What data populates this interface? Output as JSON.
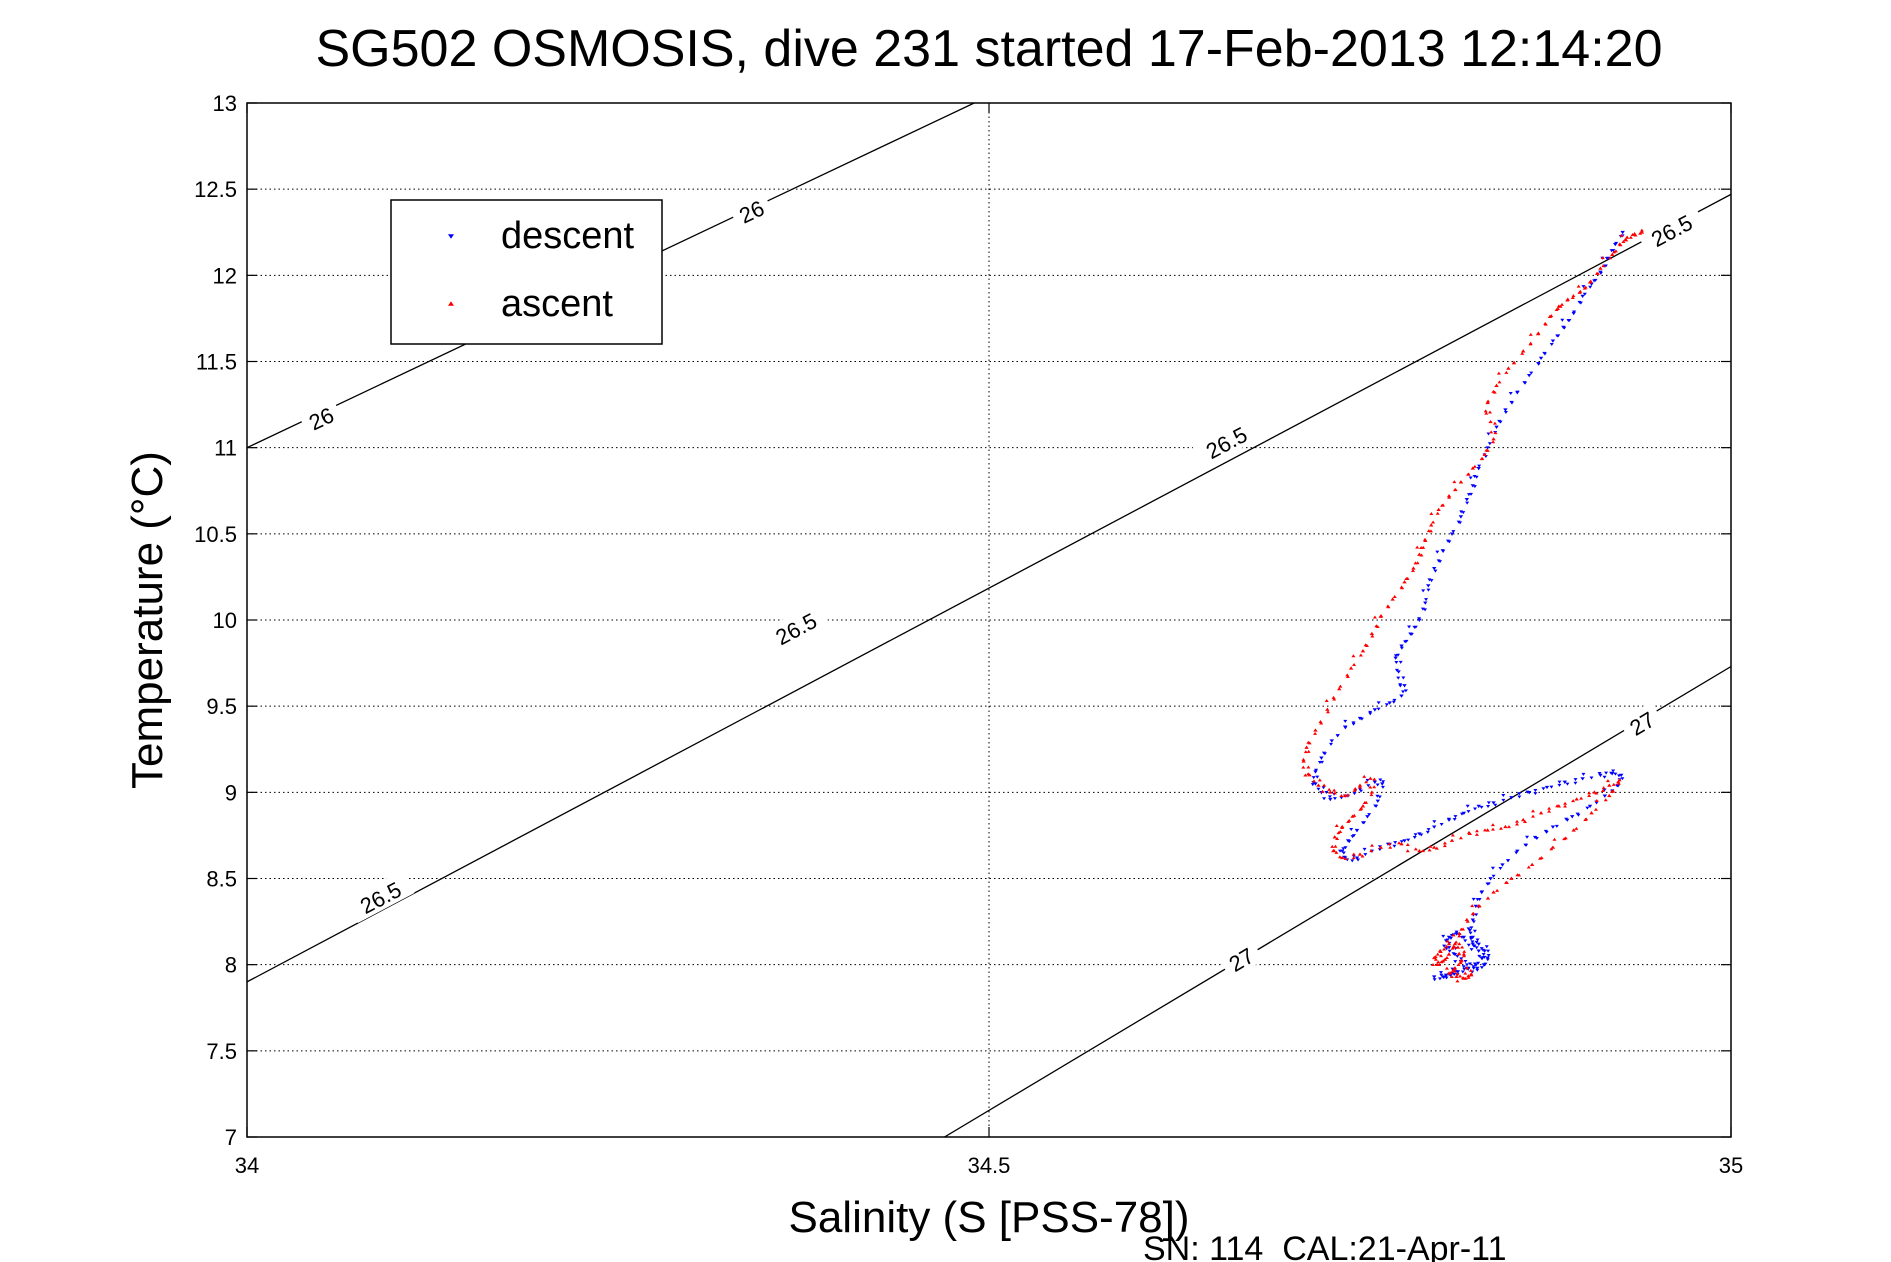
{
  "chart_data": {
    "type": "scatter",
    "title": "SG502 OSMOSIS, dive 231 started 17-Feb-2013 12:14:20",
    "xlabel": "Salinity (S [PSS-78])",
    "ylabel": "Temperature (°C)",
    "xlim": [
      34,
      35
    ],
    "ylim": [
      7,
      13
    ],
    "x_ticks": [
      "34",
      "34.5",
      "35"
    ],
    "y_ticks": [
      "7",
      "7.5",
      "8",
      "8.5",
      "9",
      "9.5",
      "10",
      "10.5",
      "11",
      "11.5",
      "12",
      "12.5",
      "13"
    ],
    "grid": true,
    "legend_position": "top-left",
    "footer": "SN: 114  CAL:21-Apr-11",
    "colors": {
      "descent": "#0000ff",
      "ascent": "#ff0000",
      "contour": "#000000"
    },
    "contours": [
      {
        "label": "26",
        "points": [
          [
            34.0,
            11.0
          ],
          [
            34.49,
            13.0
          ]
        ],
        "label_positions": [
          [
            34.05,
            11.17
          ],
          [
            34.34,
            12.37
          ]
        ]
      },
      {
        "label": "26.5",
        "points": [
          [
            34.0,
            7.9
          ],
          [
            35.0,
            12.47
          ]
        ],
        "label_positions": [
          [
            34.09,
            8.39
          ],
          [
            34.37,
            9.95
          ],
          [
            34.66,
            11.03
          ],
          [
            34.96,
            12.26
          ]
        ]
      },
      {
        "label": "27",
        "points": [
          [
            34.47,
            7.0
          ],
          [
            35.0,
            9.73
          ]
        ],
        "label_positions": [
          [
            34.67,
            8.03
          ],
          [
            34.94,
            9.4
          ]
        ]
      }
    ],
    "series": [
      {
        "name": "descent",
        "marker": "triangle-down",
        "x": [
          34.927,
          34.922,
          34.917,
          34.912,
          34.906,
          34.9,
          34.894,
          34.887,
          34.88,
          34.872,
          34.864,
          34.856,
          34.848,
          34.842,
          34.836,
          34.83,
          34.826,
          34.822,
          34.818,
          34.812,
          34.806,
          34.8,
          34.796,
          34.794,
          34.79,
          34.784,
          34.778,
          34.774,
          34.776,
          34.78,
          34.778,
          34.77,
          34.76,
          34.75,
          34.74,
          34.731,
          34.724,
          34.72,
          34.72,
          34.724,
          34.73,
          34.74,
          34.75,
          34.76,
          34.765,
          34.762,
          34.755,
          34.748,
          34.742,
          34.738,
          34.74,
          34.748,
          34.758,
          34.77,
          34.78,
          34.79,
          34.8,
          34.81,
          34.82,
          34.83,
          34.84,
          34.852,
          34.864,
          34.876,
          34.888,
          34.9,
          34.912,
          34.92,
          34.926,
          34.924,
          34.915,
          34.905,
          34.893,
          34.88,
          34.868,
          34.856,
          34.846,
          34.838,
          34.832,
          34.828,
          34.826,
          34.824,
          34.826,
          34.83,
          34.834,
          34.836,
          34.834,
          34.829,
          34.823,
          34.818,
          34.814,
          34.81,
          34.808,
          34.81,
          34.815,
          34.82,
          34.826,
          34.83,
          34.832,
          34.828,
          34.822,
          34.816,
          34.811,
          34.808,
          34.806,
          34.8
        ],
        "y": [
          12.25,
          12.18,
          12.1,
          12.02,
          11.95,
          11.88,
          11.78,
          11.7,
          11.62,
          11.52,
          11.42,
          11.32,
          11.22,
          11.12,
          11.0,
          10.88,
          10.78,
          10.7,
          10.6,
          10.5,
          10.4,
          10.3,
          10.2,
          10.1,
          10.0,
          9.92,
          9.85,
          9.78,
          9.7,
          9.62,
          9.56,
          9.52,
          9.48,
          9.43,
          9.38,
          9.3,
          9.2,
          9.12,
          9.05,
          9.0,
          8.96,
          8.98,
          9.02,
          9.06,
          9.05,
          8.95,
          8.86,
          8.78,
          8.72,
          8.66,
          8.62,
          8.62,
          8.66,
          8.7,
          8.72,
          8.76,
          8.8,
          8.84,
          8.88,
          8.92,
          8.94,
          8.97,
          9.0,
          9.03,
          9.06,
          9.08,
          9.1,
          9.11,
          9.1,
          9.04,
          8.98,
          8.92,
          8.86,
          8.8,
          8.74,
          8.66,
          8.58,
          8.5,
          8.42,
          8.34,
          8.26,
          8.2,
          8.16,
          8.12,
          8.08,
          8.04,
          8.0,
          7.98,
          7.98,
          8.02,
          8.06,
          8.1,
          8.14,
          8.16,
          8.18,
          8.16,
          8.12,
          8.08,
          8.04,
          8.0,
          7.98,
          7.96,
          7.94,
          7.94,
          7.93,
          7.93
        ]
      },
      {
        "name": "ascent",
        "marker": "triangle-up",
        "x": [
          34.94,
          34.935,
          34.93,
          34.925,
          34.92,
          34.912,
          34.905,
          34.898,
          34.89,
          34.884,
          34.878,
          34.87,
          34.86,
          34.85,
          34.842,
          34.836,
          34.838,
          34.84,
          34.834,
          34.826,
          34.818,
          34.81,
          34.803,
          34.798,
          34.794,
          34.79,
          34.786,
          34.78,
          34.772,
          34.764,
          34.758,
          34.752,
          34.744,
          34.736,
          34.728,
          34.72,
          34.714,
          34.712,
          34.716,
          34.722,
          34.73,
          34.74,
          34.75,
          34.757,
          34.758,
          34.752,
          34.745,
          34.738,
          34.733,
          34.732,
          34.738,
          34.75,
          34.764,
          34.778,
          34.79,
          34.8,
          34.812,
          34.824,
          34.836,
          34.848,
          34.86,
          34.872,
          34.884,
          34.896,
          34.908,
          34.918,
          34.924,
          34.918,
          34.906,
          34.894,
          34.88,
          34.866,
          34.852,
          34.84,
          34.83,
          34.822,
          34.817,
          34.814,
          34.81,
          34.806,
          34.802,
          34.8,
          34.804,
          34.81,
          34.816,
          34.82,
          34.818,
          34.814,
          34.81,
          34.815,
          34.82,
          34.825,
          34.822
        ],
        "y": [
          12.25,
          12.24,
          12.22,
          12.18,
          12.12,
          12.04,
          11.96,
          11.9,
          11.86,
          11.82,
          11.76,
          11.66,
          11.56,
          11.46,
          11.36,
          11.26,
          11.15,
          11.05,
          10.96,
          10.88,
          10.8,
          10.72,
          10.64,
          10.55,
          10.46,
          10.38,
          10.3,
          10.22,
          10.12,
          10.02,
          9.92,
          9.82,
          9.72,
          9.6,
          9.48,
          9.36,
          9.26,
          9.18,
          9.1,
          9.04,
          9.0,
          8.98,
          9.04,
          9.08,
          9.0,
          8.92,
          8.86,
          8.8,
          8.74,
          8.66,
          8.62,
          8.64,
          8.68,
          8.7,
          8.66,
          8.68,
          8.72,
          8.76,
          8.78,
          8.8,
          8.84,
          8.88,
          8.92,
          8.96,
          9.0,
          9.04,
          9.06,
          8.98,
          8.88,
          8.78,
          8.68,
          8.58,
          8.5,
          8.42,
          8.34,
          8.26,
          8.18,
          8.12,
          8.06,
          8.02,
          8.0,
          8.04,
          8.08,
          8.12,
          8.1,
          8.06,
          8.02,
          7.98,
          7.95,
          7.93,
          7.92,
          7.94,
          7.98
        ]
      }
    ]
  }
}
